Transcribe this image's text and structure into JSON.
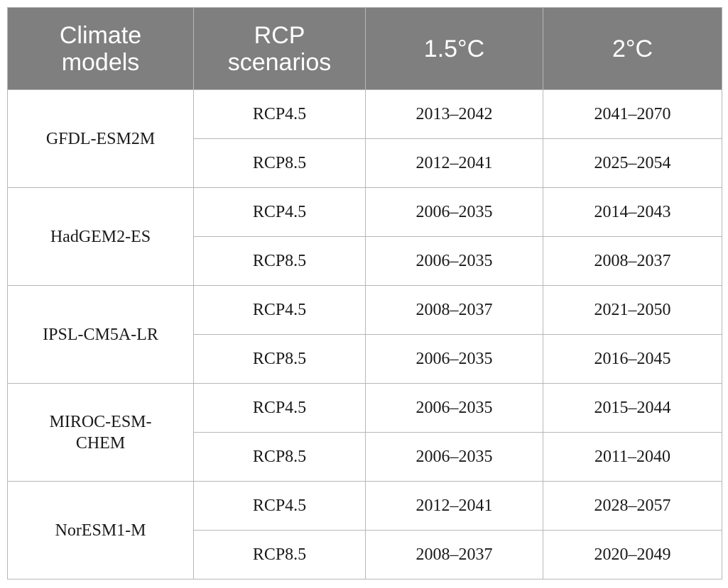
{
  "table": {
    "headers": [
      "Climate\nmodels",
      "RCP\nscenarios",
      "1.5°C",
      "2°C"
    ],
    "groups": [
      {
        "model": "GFDL-ESM2M",
        "rows": [
          {
            "scenario": "RCP4.5",
            "t15": "2013–2042",
            "t2": "2041–2070"
          },
          {
            "scenario": "RCP8.5",
            "t15": "2012–2041",
            "t2": "2025–2054"
          }
        ]
      },
      {
        "model": "HadGEM2-ES",
        "rows": [
          {
            "scenario": "RCP4.5",
            "t15": "2006–2035",
            "t2": "2014–2043"
          },
          {
            "scenario": "RCP8.5",
            "t15": "2006–2035",
            "t2": "2008–2037"
          }
        ]
      },
      {
        "model": "IPSL-CM5A-LR",
        "rows": [
          {
            "scenario": "RCP4.5",
            "t15": "2008–2037",
            "t2": "2021–2050"
          },
          {
            "scenario": "RCP8.5",
            "t15": "2006–2035",
            "t2": "2016–2045"
          }
        ]
      },
      {
        "model": "MIROC-ESM-CHEM",
        "rows": [
          {
            "scenario": "RCP4.5",
            "t15": "2006–2035",
            "t2": "2015–2044"
          },
          {
            "scenario": "RCP8.5",
            "t15": "2006–2035",
            "t2": "2011–2040"
          }
        ]
      },
      {
        "model": "NorESM1-M",
        "rows": [
          {
            "scenario": "RCP4.5",
            "t15": "2012–2041",
            "t2": "2028–2057"
          },
          {
            "scenario": "RCP8.5",
            "t15": "2008–2037",
            "t2": "2020–2049"
          }
        ]
      }
    ]
  }
}
